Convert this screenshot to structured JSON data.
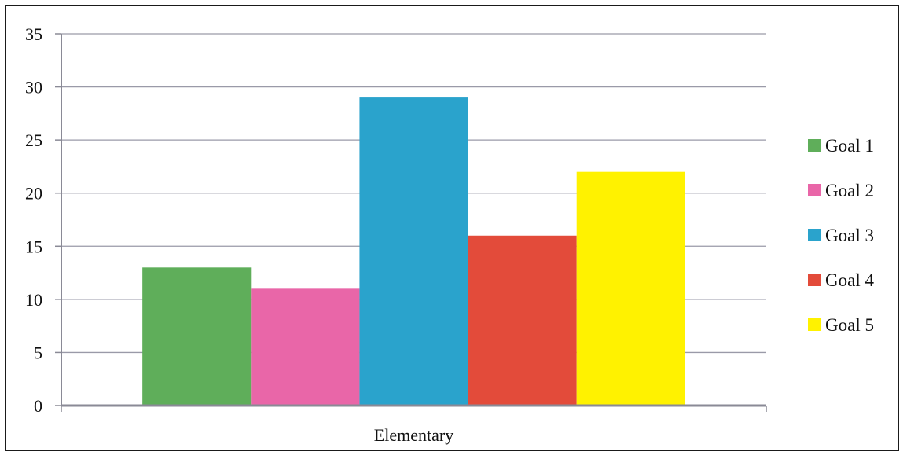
{
  "chart_data": {
    "type": "bar",
    "categories": [
      "Elementary"
    ],
    "series": [
      {
        "name": "Goal 1",
        "values": [
          13
        ],
        "color": "#5fae5a"
      },
      {
        "name": "Goal 2",
        "values": [
          11
        ],
        "color": "#e966a8"
      },
      {
        "name": "Goal 3",
        "values": [
          29
        ],
        "color": "#2aa3cc"
      },
      {
        "name": "Goal 4",
        "values": [
          16
        ],
        "color": "#e34b3a"
      },
      {
        "name": "Goal 5",
        "values": [
          22
        ],
        "color": "#fff200"
      }
    ],
    "title": "",
    "xlabel": "",
    "ylabel": "",
    "ylim": [
      0,
      35
    ],
    "yticks": [
      0,
      5,
      10,
      15,
      20,
      25,
      30,
      35
    ],
    "grid": true,
    "legend_position": "right"
  }
}
